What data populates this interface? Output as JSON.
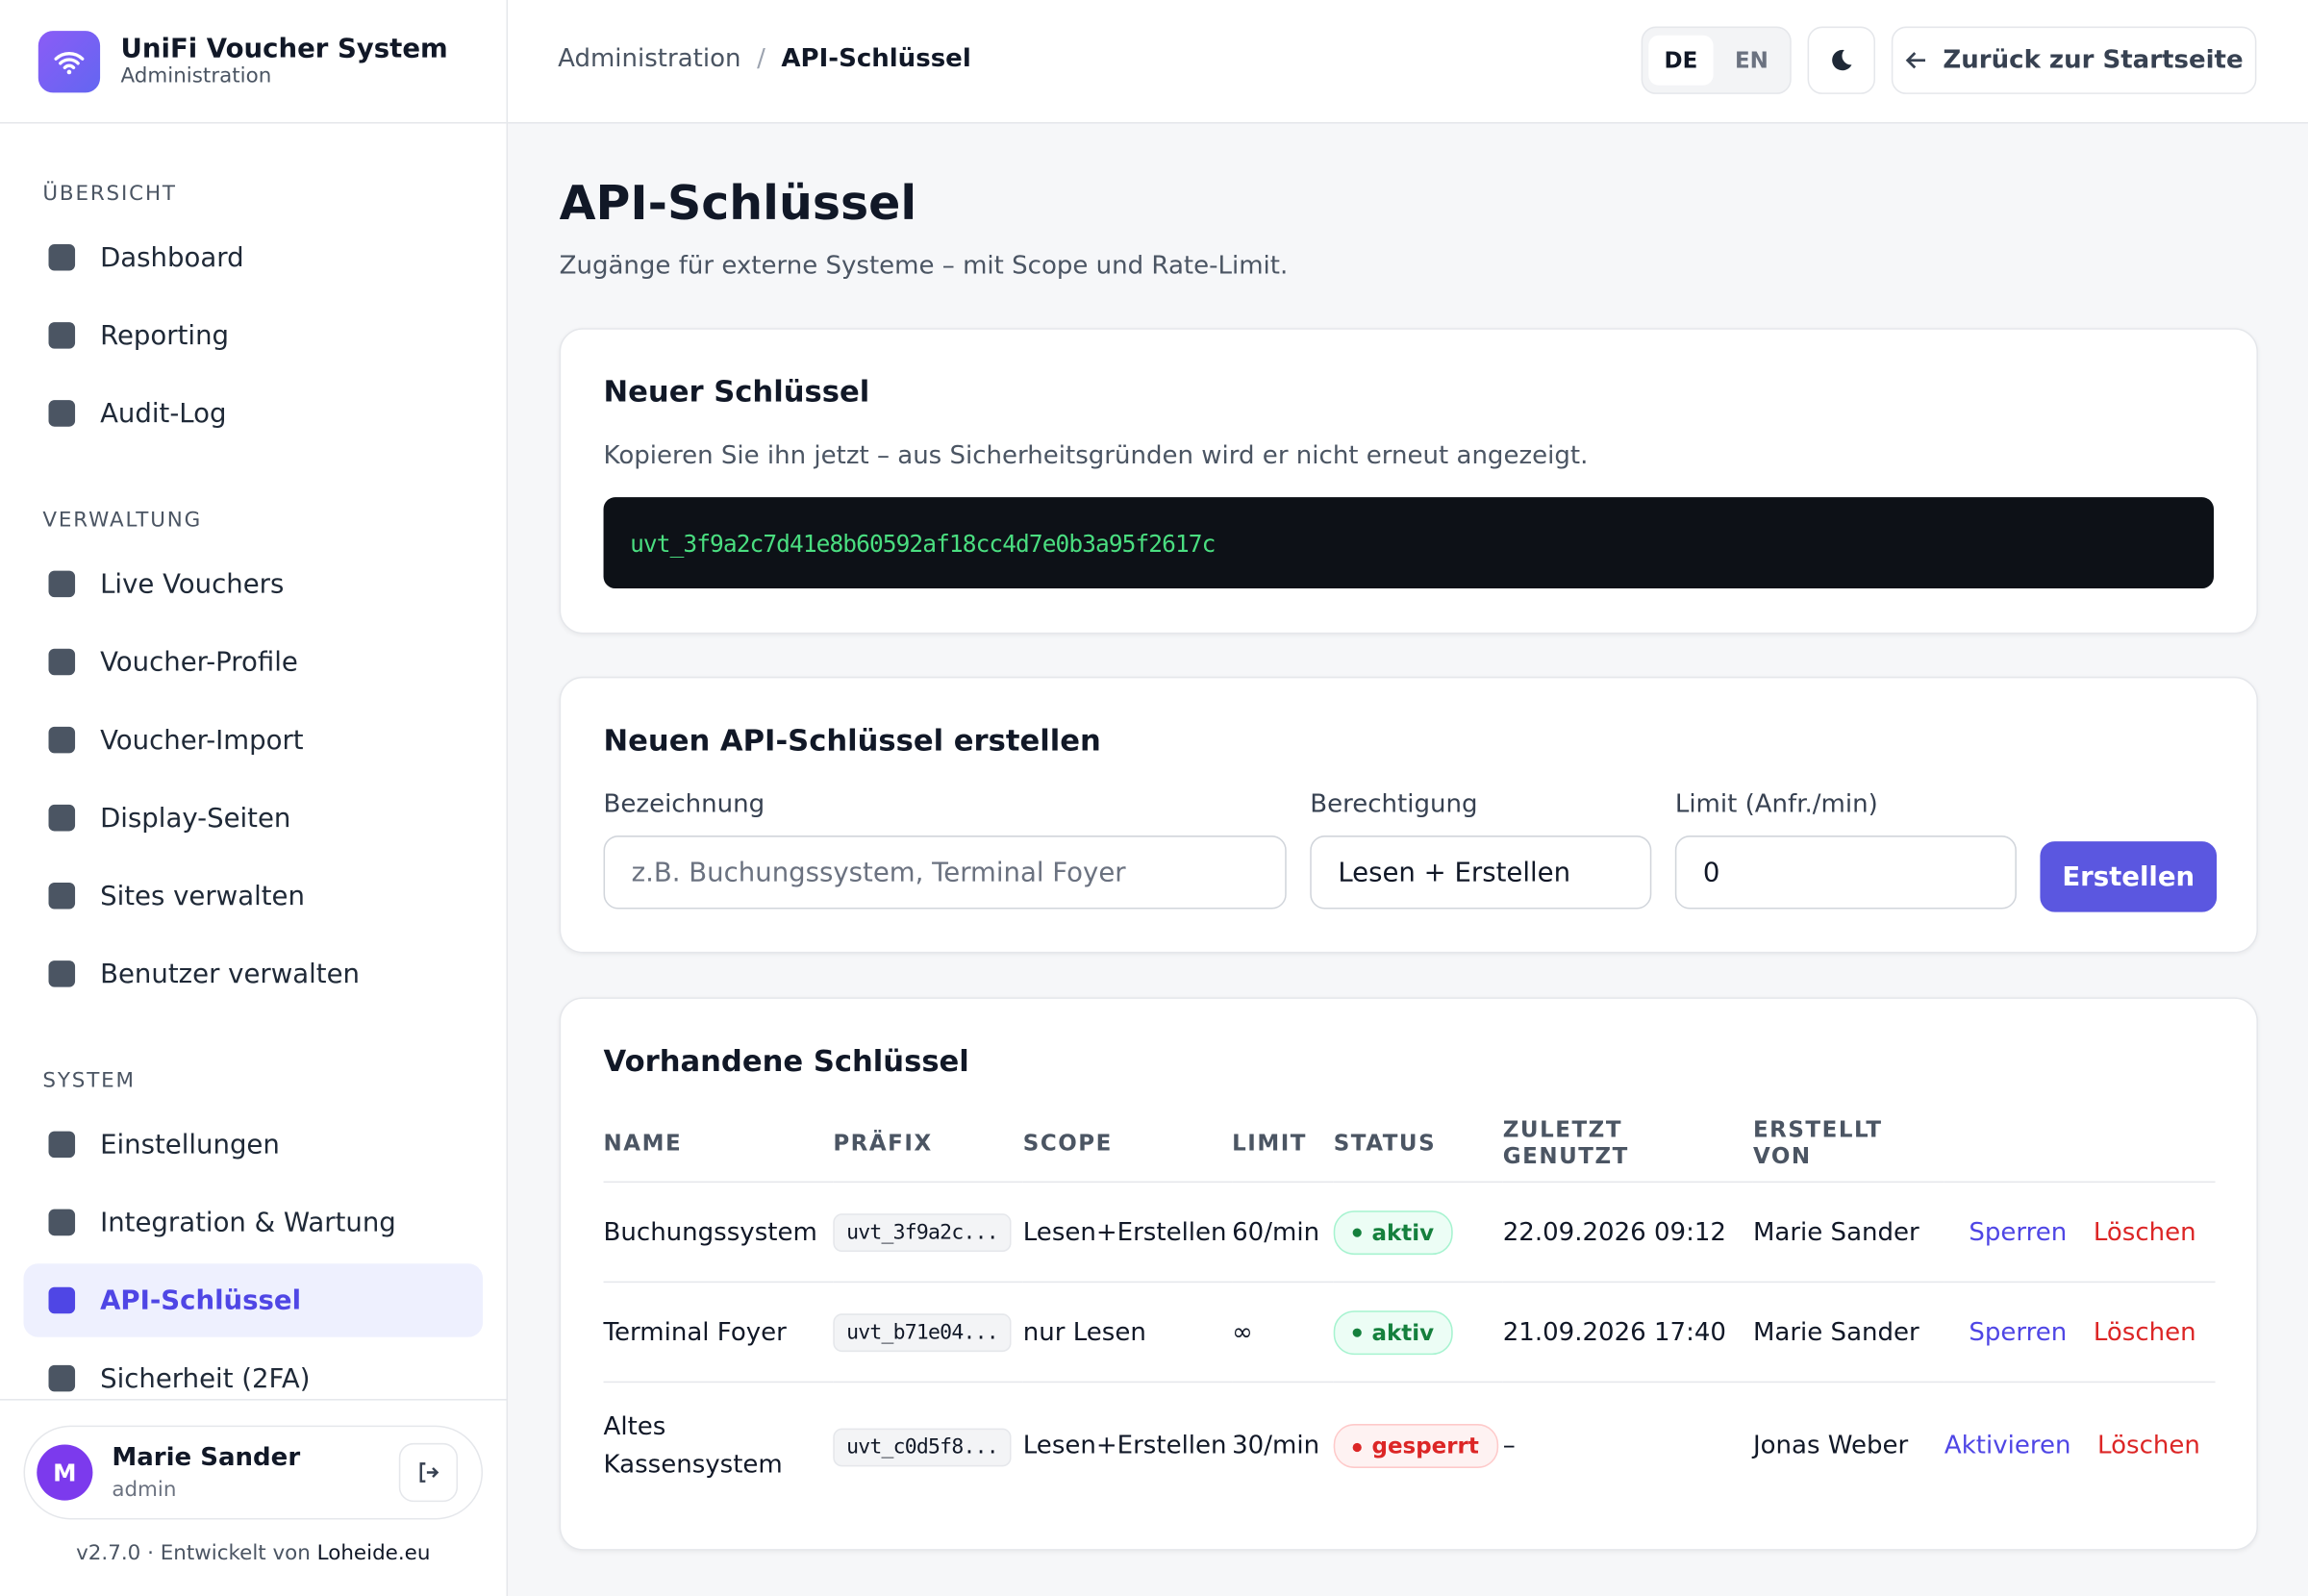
{
  "brand": {
    "title": "UniFi Voucher System",
    "subtitle": "Administration"
  },
  "breadcrumb": {
    "parent": "Administration",
    "separator": "/",
    "current": "API-Schlüssel"
  },
  "header": {
    "languages": [
      "DE",
      "EN"
    ],
    "back": "Zurück zur Startseite"
  },
  "sidebar": {
    "sections": [
      {
        "title": "ÜBERSICHT",
        "items": [
          "Dashboard",
          "Reporting",
          "Audit-Log"
        ]
      },
      {
        "title": "VERWALTUNG",
        "items": [
          "Live Vouchers",
          "Voucher-Profile",
          "Voucher-Import",
          "Display-Seiten",
          "Sites verwalten",
          "Benutzer verwalten"
        ]
      },
      {
        "title": "SYSTEM",
        "items": [
          "Einstellungen",
          "Integration & Wartung",
          "API-Schlüssel",
          "Sicherheit (2FA)"
        ]
      }
    ],
    "user": {
      "initial": "M",
      "name": "Marie Sander",
      "role": "admin"
    },
    "footer": {
      "text": "v2.7.0 · Entwickelt von",
      "link": "Loheide.eu"
    }
  },
  "page": {
    "title": "API-Schlüssel",
    "subtitle": "Zugänge für externe Systeme – mit Scope und Rate-Limit."
  },
  "new_key": {
    "title": "Neuer Schlüssel",
    "note": "Kopieren Sie ihn jetzt – aus Sicherheitsgründen wird er nicht erneut angezeigt.",
    "key": "uvt_3f9a2c7d41e8b60592af18cc4d7e0b3a95f2617c"
  },
  "create": {
    "title": "Neuen API-Schlüssel erstellen",
    "fields": [
      {
        "label": "Bezeichnung",
        "placeholder": "z.B. Buchungssystem, Terminal Foyer"
      },
      {
        "label": "Berechtigung",
        "value": "Lesen + Erstellen"
      },
      {
        "label": "Limit (Anfr./min)",
        "value": "0"
      }
    ],
    "button": "Erstellen"
  },
  "table": {
    "title": "Vorhandene Schlüssel",
    "headers": [
      "NAME",
      "PRÄFIX",
      "SCOPE",
      "LIMIT",
      "STATUS",
      "ZULETZT GENUTZT",
      "ERSTELLT VON"
    ],
    "rows": [
      {
        "name": "Buchungssystem",
        "prefix": "uvt_3f9a2c...",
        "scope": "Lesen+Erstellen",
        "limit": "60/min",
        "status": "aktiv",
        "status_color": "green",
        "last_used": "22.09.2026 09:12",
        "created_by": "Marie Sander",
        "actions": [
          "Sperren",
          "Löschen"
        ]
      },
      {
        "name": "Terminal Foyer",
        "prefix": "uvt_b71e04...",
        "scope": "nur Lesen",
        "limit": "∞",
        "status": "aktiv",
        "status_color": "green",
        "last_used": "21.09.2026 17:40",
        "created_by": "Marie Sander",
        "actions": [
          "Sperren",
          "Löschen"
        ]
      },
      {
        "name": "Altes Kassensystem",
        "prefix": "uvt_c0d5f8...",
        "scope": "Lesen+Erstellen",
        "limit": "30/min",
        "status": "gesperrt",
        "status_color": "red",
        "last_used": "–",
        "created_by": "Jonas Weber",
        "actions": [
          "Aktivieren",
          "Löschen"
        ]
      }
    ]
  }
}
